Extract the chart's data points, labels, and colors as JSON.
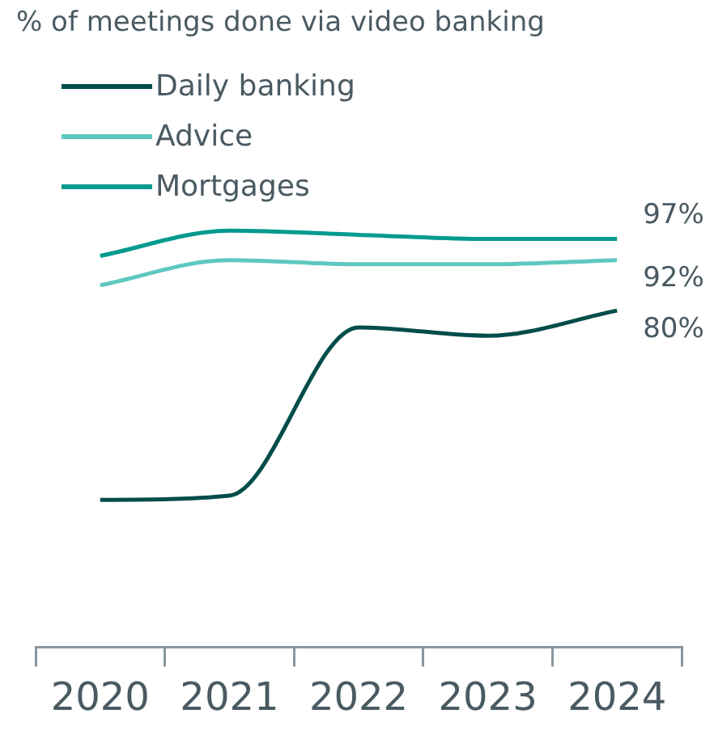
{
  "chart_data": {
    "type": "line",
    "title": "% of meetings done via video banking",
    "categories": [
      "2020",
      "2021",
      "2022",
      "2023",
      "2024"
    ],
    "series": [
      {
        "name": "Daily banking",
        "color": "#004d4a",
        "values": [
          35,
          36,
          76,
          74,
          80
        ],
        "value_labels": [
          null,
          null,
          null,
          null,
          "80%"
        ]
      },
      {
        "name": "Advice",
        "color": "#5ec8c0",
        "values": [
          86,
          92,
          91,
          91,
          92
        ],
        "value_labels": [
          null,
          null,
          null,
          null,
          "92%"
        ]
      },
      {
        "name": "Mortgages",
        "color": "#009a8e",
        "values": [
          93,
          99,
          98,
          97,
          97
        ],
        "value_labels": [
          null,
          null,
          null,
          null,
          "97%"
        ]
      }
    ],
    "tick_labels": "x",
    "grid": false,
    "legend": "top left",
    "marker": "none",
    "line_style": "solid"
  }
}
